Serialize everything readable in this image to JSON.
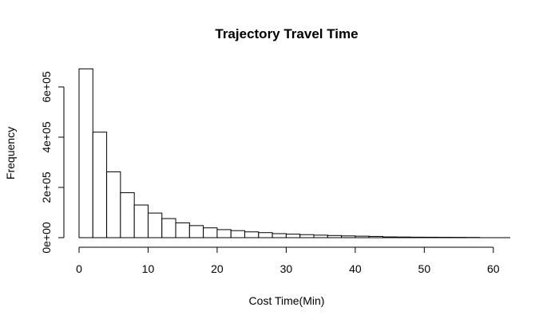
{
  "chart_data": {
    "type": "bar",
    "title": "Trajectory Travel Time",
    "xlabel": "Cost Time(Min)",
    "ylabel": "Frequency",
    "bin_width": 2,
    "bin_start": 0,
    "values": [
      672000,
      420000,
      262000,
      179000,
      130000,
      98000,
      76000,
      59000,
      48000,
      39000,
      32000,
      28000,
      23000,
      20000,
      16000,
      14000,
      12000,
      10000,
      8500,
      7000,
      6000,
      5000,
      3000,
      2500,
      2000,
      1800,
      1500,
      1300,
      1000
    ],
    "xlim": [
      0,
      62
    ],
    "ylim": [
      0,
      700000
    ],
    "xticks": [
      0,
      10,
      20,
      30,
      40,
      50,
      60
    ],
    "xtick_labels": [
      "0",
      "10",
      "20",
      "30",
      "40",
      "50",
      "60"
    ],
    "yticks": [
      0,
      200000,
      400000,
      600000
    ],
    "ytick_labels": [
      "0e+00",
      "2e+05",
      "4e+05",
      "6e+05"
    ],
    "grid": false
  }
}
